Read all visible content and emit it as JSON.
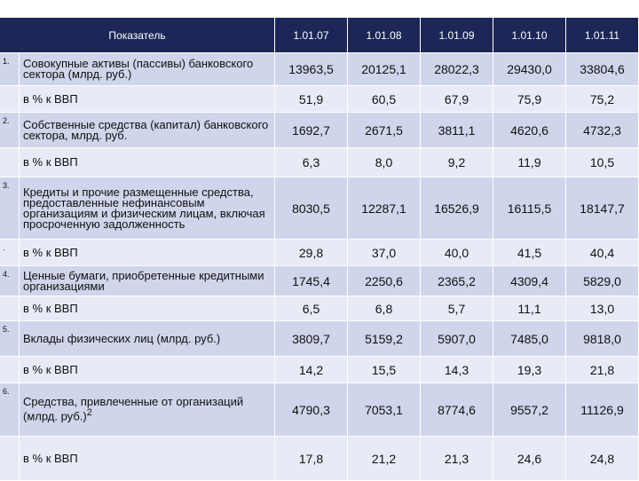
{
  "table": {
    "header": [
      "Показатель",
      "1.01.07",
      "1.01.08",
      "1.01.09",
      "1.01.10",
      "1.01.11"
    ],
    "rows": [
      {
        "num": "1.",
        "label": "Совокупные активы (пассивы) банковского сектора (млрд. руб.)",
        "values": [
          "13963,5",
          "20125,1",
          "28022,3",
          "29430,0",
          "33804,6"
        ]
      },
      {
        "label": "в % к ВВП",
        "values": [
          "51,9",
          "60,5",
          "67,9",
          "75,9",
          "75,2"
        ]
      },
      {
        "num": "2.",
        "label": "Собственные средства (капитал) банковского сектора, млрд. руб.",
        "values": [
          "1692,7",
          "2671,5",
          "3811,1",
          "4620,6",
          "4732,3"
        ]
      },
      {
        "label": "в % к ВВП",
        "values": [
          "6,3",
          "8,0",
          "9,2",
          "11,9",
          "10,5"
        ]
      },
      {
        "num": "3.",
        "label": "Кредиты и прочие размещенные средства, предоставленные нефинансовым организациям и физическим лицам, включая просроченную задолженность",
        "values": [
          "8030,5",
          "12287,1",
          "16526,9",
          "16115,5",
          "18147,7"
        ]
      },
      {
        "num": ".",
        "label": "в % к ВВП",
        "values": [
          "29,8",
          "37,0",
          "40,0",
          "41,5",
          "40,4"
        ]
      },
      {
        "num": "4.",
        "label": "Ценные бумаги, приобретенные кредитными организациями",
        "values": [
          "1745,4",
          "2250,6",
          "2365,2",
          "4309,4",
          "5829,0"
        ]
      },
      {
        "label": "в % к ВВП",
        "values": [
          "6,5",
          "6,8",
          "5,7",
          "11,1",
          "13,0"
        ]
      },
      {
        "num": "5.",
        "label": "Вклады физических лиц (млрд. руб.)",
        "values": [
          "3809,7",
          "5159,2",
          "5907,0",
          "7485,0",
          "9818,0"
        ]
      },
      {
        "label": "в % к ВВП",
        "values": [
          "14,2",
          "15,5",
          "14,3",
          "19,3",
          "21,8"
        ]
      },
      {
        "num": "6.",
        "label": "Средства, привлеченные от организаций (млрд. руб.)",
        "sup": "2",
        "values": [
          "4790,3",
          "7053,1",
          "8774,6",
          "9557,2",
          "11126,9"
        ]
      },
      {
        "label": "в % к ВВП",
        "values": [
          "17,8",
          "21,2",
          "21,3",
          "24,6",
          "24,8"
        ]
      }
    ]
  }
}
